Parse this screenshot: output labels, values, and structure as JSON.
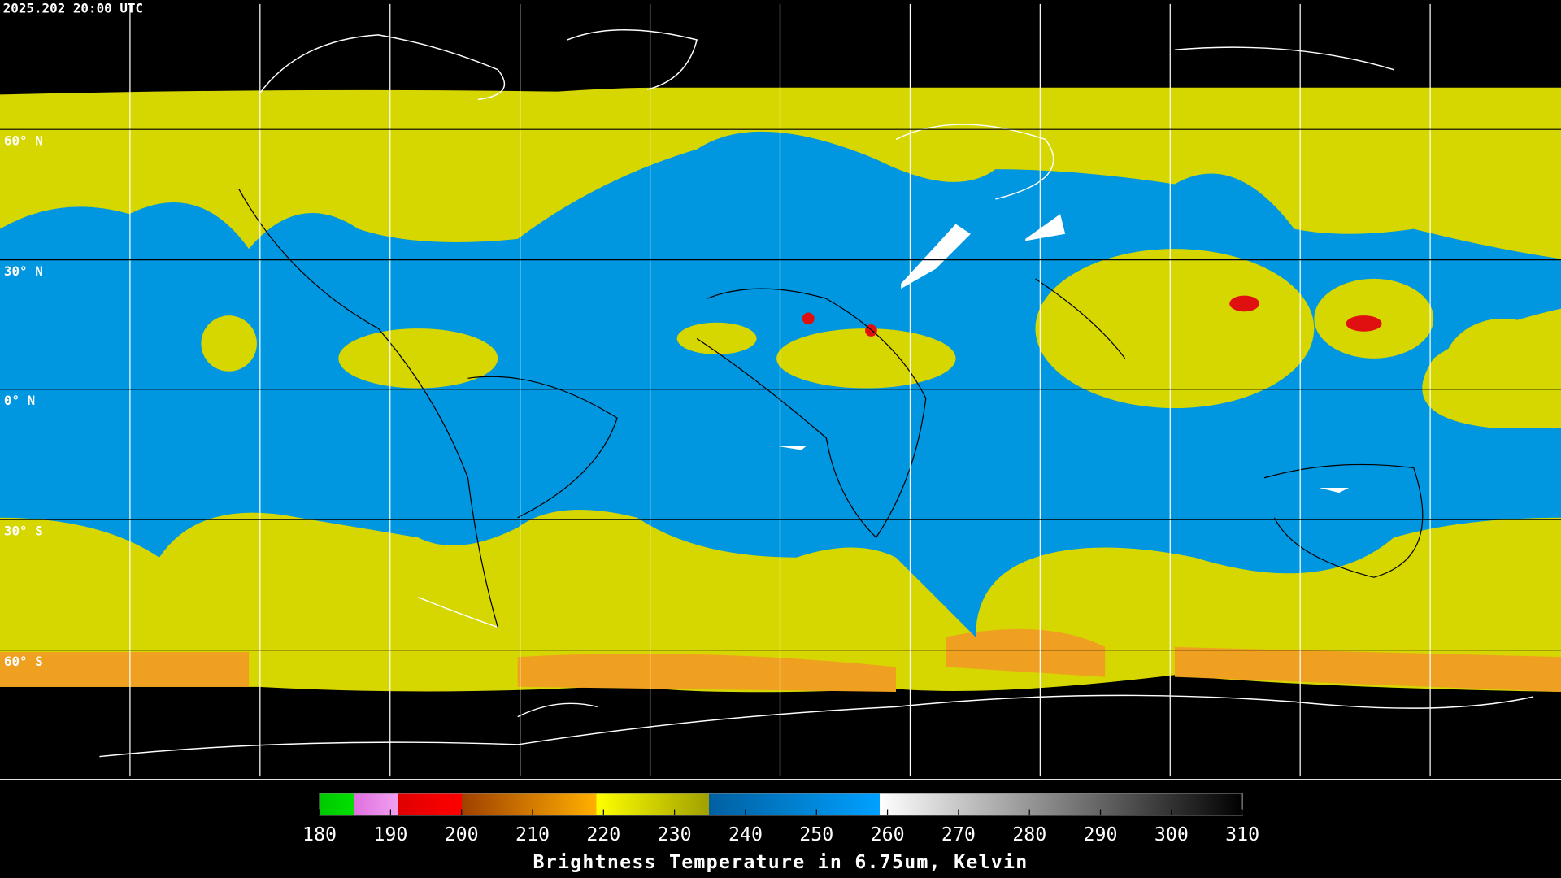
{
  "header": {
    "timestamp": "2025.202 20:00 UTC"
  },
  "map": {
    "latitude_labels": [
      "60° N",
      "30° N",
      "0° N",
      "30° S",
      "60° S"
    ]
  },
  "colorbar": {
    "range": [
      180,
      310
    ],
    "ticks": [
      180,
      190,
      200,
      210,
      220,
      230,
      240,
      250,
      260,
      270,
      280,
      290,
      300,
      310
    ],
    "title": "Brightness Temperature in 6.75um, Kelvin"
  }
}
